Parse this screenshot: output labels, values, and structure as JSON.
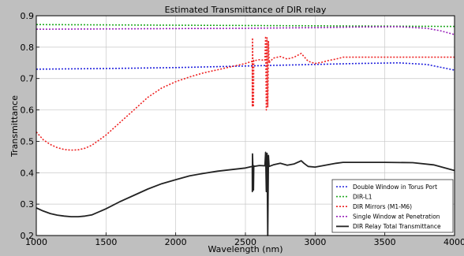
{
  "chart_data": {
    "type": "line",
    "title": "Estimated Transmittance of DIR relay",
    "xlabel": "Wavelength (nm)",
    "ylabel": "Transmittance",
    "xlim": [
      1000,
      4000
    ],
    "ylim": [
      0.2,
      0.9
    ],
    "xticks": [
      "1000",
      "1500",
      "2000",
      "2500",
      "3000",
      "3500",
      "4000"
    ],
    "yticks": [
      "0.2",
      "0.3",
      "0.4",
      "0.5",
      "0.6",
      "0.7",
      "0.8",
      "0.9"
    ],
    "grid": true,
    "legend_position": "bottom-right",
    "series": [
      {
        "name": "Double Window in Torus Port",
        "color": "#2222dd",
        "style": "dotted",
        "x": [
          1000,
          1500,
          2000,
          2500,
          3000,
          3300,
          3600,
          3800,
          4000
        ],
        "y": [
          0.73,
          0.732,
          0.735,
          0.74,
          0.745,
          0.748,
          0.75,
          0.745,
          0.727
        ]
      },
      {
        "name": "DIR-L1",
        "color": "#22aa22",
        "style": "dotted",
        "x": [
          1000,
          1500,
          2000,
          2500,
          3000,
          3500,
          4000
        ],
        "y": [
          0.872,
          0.871,
          0.87,
          0.869,
          0.868,
          0.867,
          0.866
        ]
      },
      {
        "name": "DIR Mirrors (M1-M6)",
        "color": "#ee2222",
        "style": "dotted",
        "x": [
          1000,
          1050,
          1100,
          1150,
          1200,
          1250,
          1300,
          1350,
          1400,
          1500,
          1600,
          1700,
          1800,
          1900,
          2000,
          2100,
          2200,
          2300,
          2400,
          2500,
          2549,
          2550,
          2551,
          2558,
          2560,
          2562,
          2600,
          2640,
          2645,
          2650,
          2655,
          2660,
          2665,
          2670,
          2700,
          2750,
          2800,
          2850,
          2900,
          2920,
          2950,
          3000,
          3050,
          3100,
          3150,
          3200,
          3300,
          3500,
          3700,
          4000
        ],
        "y": [
          0.53,
          0.505,
          0.49,
          0.48,
          0.474,
          0.472,
          0.473,
          0.478,
          0.488,
          0.52,
          0.56,
          0.6,
          0.64,
          0.67,
          0.69,
          0.705,
          0.718,
          0.728,
          0.738,
          0.748,
          0.755,
          0.61,
          0.83,
          0.61,
          0.758,
          0.757,
          0.76,
          0.758,
          0.835,
          0.6,
          0.83,
          0.61,
          0.82,
          0.75,
          0.765,
          0.77,
          0.762,
          0.768,
          0.78,
          0.77,
          0.755,
          0.748,
          0.752,
          0.758,
          0.762,
          0.768,
          0.768,
          0.768,
          0.768,
          0.768
        ]
      },
      {
        "name": "Single Window at Penetration",
        "color": "#9922bb",
        "style": "dotted",
        "x": [
          1000,
          1500,
          2000,
          2500,
          3000,
          3300,
          3600,
          3800,
          3900,
          4000
        ],
        "y": [
          0.857,
          0.858,
          0.859,
          0.86,
          0.862,
          0.864,
          0.865,
          0.86,
          0.852,
          0.84
        ]
      },
      {
        "name": "DIR Relay Total Transmittance",
        "color": "#222222",
        "style": "solid",
        "x": [
          1000,
          1050,
          1100,
          1150,
          1200,
          1250,
          1300,
          1350,
          1400,
          1500,
          1600,
          1700,
          1800,
          1900,
          2000,
          2100,
          2200,
          2300,
          2400,
          2500,
          2549,
          2550,
          2551,
          2558,
          2560,
          2562,
          2600,
          2640,
          2645,
          2650,
          2655,
          2660,
          2665,
          2670,
          2700,
          2750,
          2800,
          2850,
          2900,
          2920,
          2950,
          3000,
          3050,
          3100,
          3150,
          3200,
          3300,
          3500,
          3700,
          3850,
          4000
        ],
        "y": [
          0.288,
          0.278,
          0.27,
          0.265,
          0.262,
          0.26,
          0.26,
          0.262,
          0.266,
          0.285,
          0.308,
          0.328,
          0.348,
          0.365,
          0.378,
          0.39,
          0.398,
          0.405,
          0.41,
          0.415,
          0.42,
          0.34,
          0.46,
          0.345,
          0.422,
          0.42,
          0.423,
          0.422,
          0.465,
          0.34,
          0.462,
          0.2,
          0.455,
          0.42,
          0.425,
          0.43,
          0.424,
          0.428,
          0.438,
          0.43,
          0.42,
          0.418,
          0.422,
          0.426,
          0.43,
          0.433,
          0.433,
          0.433,
          0.432,
          0.425,
          0.407
        ]
      }
    ]
  }
}
